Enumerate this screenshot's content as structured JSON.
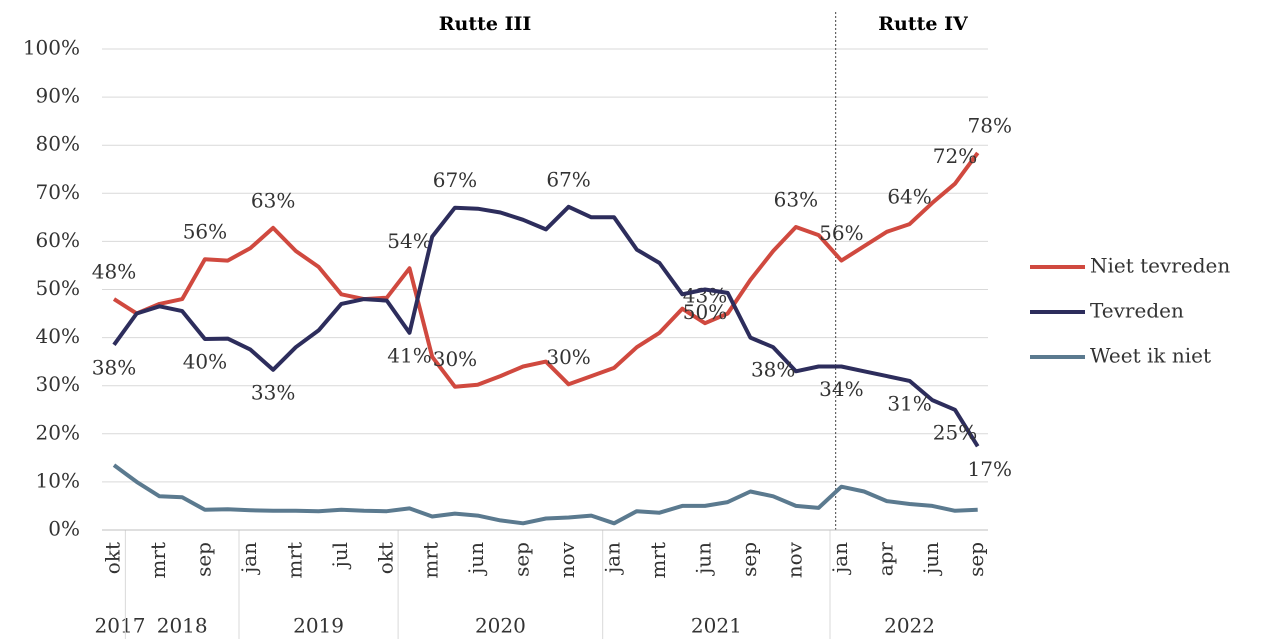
{
  "chart_data": {
    "type": "line",
    "annotations": [
      "Rutte III",
      "Rutte IV"
    ],
    "categories": [
      "okt",
      null,
      "mrt",
      null,
      "sep",
      null,
      "jan",
      null,
      "mrt",
      null,
      "jul",
      null,
      "okt",
      null,
      "mrt",
      null,
      "jun",
      null,
      "sep",
      null,
      "nov",
      null,
      "jan",
      null,
      "mrt",
      null,
      "jun",
      null,
      "sep",
      null,
      "nov",
      null,
      "jan",
      null,
      "apr",
      null,
      "jun",
      null,
      "sep"
    ],
    "years": [
      {
        "label": "2017",
        "start": 0,
        "end": 0
      },
      {
        "label": "2018",
        "start": 1,
        "end": 5
      },
      {
        "label": "2019",
        "start": 6,
        "end": 12
      },
      {
        "label": "2020",
        "start": 13,
        "end": 21
      },
      {
        "label": "2021",
        "start": 22,
        "end": 31
      },
      {
        "label": "2022",
        "start": 32,
        "end": 38
      }
    ],
    "series": [
      {
        "name": "Niet tevreden",
        "color": "#d0493f",
        "values": [
          48,
          45,
          47,
          48,
          56.3,
          56,
          58.6,
          62.8,
          58,
          54.7,
          49,
          48,
          48.3,
          54.4,
          36,
          29.8,
          30.2,
          32,
          34,
          35,
          30.3,
          32,
          33.7,
          38,
          41,
          46,
          43,
          45,
          52,
          58,
          63,
          61.3,
          56,
          59,
          62,
          63.6,
          68,
          72,
          78.4
        ],
        "value_labels": [
          "48%",
          null,
          null,
          null,
          "56%",
          null,
          null,
          "63%",
          null,
          null,
          null,
          null,
          null,
          "54%",
          null,
          "30%",
          null,
          null,
          null,
          null,
          "30%",
          null,
          null,
          null,
          null,
          null,
          "43%",
          null,
          null,
          null,
          "63%",
          null,
          "56%",
          null,
          null,
          "64%",
          null,
          "72%",
          "78%"
        ]
      },
      {
        "name": "Tevreden",
        "color": "#2d2d5c",
        "values": [
          38.5,
          45,
          46.5,
          45.5,
          39.7,
          39.8,
          37.5,
          33.3,
          38,
          41.5,
          47,
          48,
          47.7,
          41,
          61,
          67,
          66.8,
          66,
          64.5,
          62.5,
          67.2,
          65,
          65,
          58.3,
          55.5,
          49,
          50,
          49.3,
          40,
          38,
          33,
          34,
          34,
          33,
          32,
          31,
          27,
          25,
          17.4
        ],
        "value_labels": [
          "38%",
          null,
          null,
          null,
          "40%",
          null,
          null,
          "33%",
          null,
          null,
          null,
          null,
          null,
          "41%",
          null,
          "67%",
          null,
          null,
          null,
          null,
          "67%",
          null,
          null,
          null,
          null,
          null,
          "50%",
          null,
          null,
          "38%",
          null,
          null,
          "34%",
          null,
          null,
          "31%",
          null,
          "25%",
          "17%"
        ]
      },
      {
        "name": "Weet ik niet",
        "color": "#5b7a8f",
        "values": [
          13.5,
          10,
          7,
          6.8,
          4.2,
          4.3,
          4.1,
          4,
          4,
          3.9,
          4.2,
          4,
          3.9,
          4.5,
          2.8,
          3.4,
          3,
          2,
          1.4,
          2.4,
          2.6,
          3,
          1.4,
          3.9,
          3.6,
          5,
          5,
          5.8,
          8,
          7,
          5,
          4.6,
          9,
          8,
          6,
          5.4,
          5,
          4,
          4.2
        ]
      }
    ],
    "ylim": [
      0,
      100
    ],
    "yticks": [
      {
        "value": 0,
        "label": "0%"
      },
      {
        "value": 10,
        "label": "10%"
      },
      {
        "value": 20,
        "label": "20%"
      },
      {
        "value": 30,
        "label": "30%"
      },
      {
        "value": 40,
        "label": "40%"
      },
      {
        "value": 50,
        "label": "50%"
      },
      {
        "value": 60,
        "label": "60%"
      },
      {
        "value": 70,
        "label": "70%"
      },
      {
        "value": 80,
        "label": "80%"
      },
      {
        "value": 90,
        "label": "90%"
      },
      {
        "value": 100,
        "label": "100%"
      }
    ],
    "grid": true,
    "legend": "right"
  }
}
